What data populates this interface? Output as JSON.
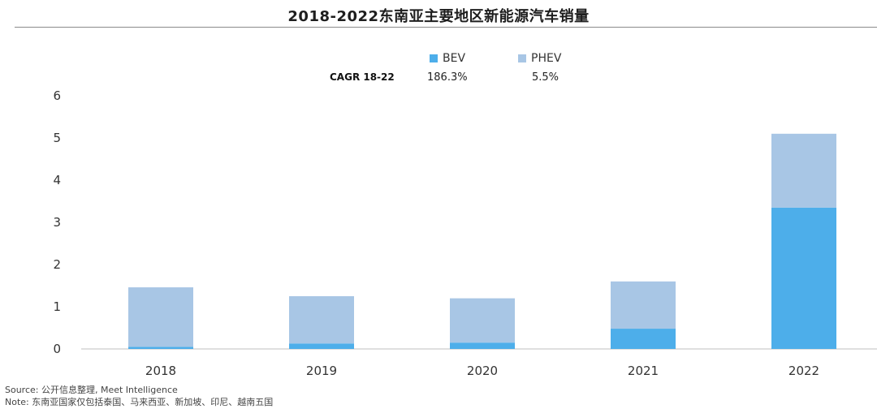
{
  "chart_data": {
    "type": "bar",
    "stacked": true,
    "title": "2018-2022东南亚主要地区新能源汽车销量",
    "xlabel": "",
    "ylabel": "",
    "ylim": [
      0,
      6
    ],
    "yticks": [
      0,
      1,
      2,
      3,
      4,
      5,
      6
    ],
    "grid": false,
    "legend_position": "top-center",
    "categories": [
      "2018",
      "2019",
      "2020",
      "2021",
      "2022"
    ],
    "series": [
      {
        "name": "BEV",
        "color": "#4daeea",
        "values": [
          0.05,
          0.13,
          0.15,
          0.48,
          3.35
        ],
        "cagr": "186.3%"
      },
      {
        "name": "PHEV",
        "color": "#a8c6e5",
        "values": [
          1.41,
          1.12,
          1.05,
          1.12,
          1.75
        ],
        "cagr": "5.5%"
      }
    ]
  },
  "cagr": {
    "label": "CAGR 18-22"
  },
  "notes": {
    "source": "Source: 公开信息整理, Meet Intelligence",
    "note": "Note: 东南亚国家仅包括泰国、马来西亚、新加坡、印尼、越南五国"
  }
}
